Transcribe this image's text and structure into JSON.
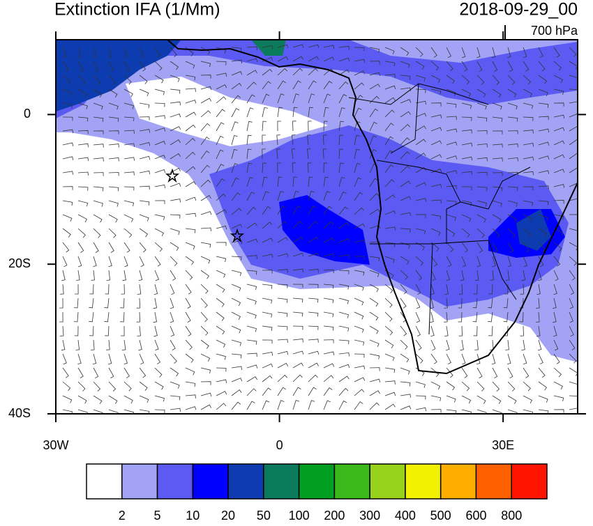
{
  "header": {
    "title": "Extinction IFA (1/Mm)",
    "date": "2018-09-29_00",
    "level": "700 hPa"
  },
  "map": {
    "lonlim": [
      -30,
      40
    ],
    "latlim": [
      -40,
      10
    ],
    "lat_ticks": [
      {
        "value": 0,
        "label": "0"
      },
      {
        "value": -20,
        "label": "20S"
      },
      {
        "value": -40,
        "label": "40S"
      }
    ],
    "lon_ticks": [
      {
        "value": -30,
        "label": "30W"
      },
      {
        "value": 0,
        "label": "0"
      },
      {
        "value": 30,
        "label": "30E"
      }
    ]
  },
  "colorbar": {
    "colors": [
      "#ffffff",
      "#a3a3f5",
      "#5b5bf3",
      "#0000ff",
      "#0d3cb0",
      "#0c7a5c",
      "#009f22",
      "#3bb81a",
      "#98d21a",
      "#f2f200",
      "#ffae00",
      "#ff6000",
      "#ff1400"
    ],
    "labels": [
      "2",
      "5",
      "10",
      "20",
      "50",
      "100",
      "200",
      "300",
      "400",
      "500",
      "600",
      "800"
    ]
  }
}
